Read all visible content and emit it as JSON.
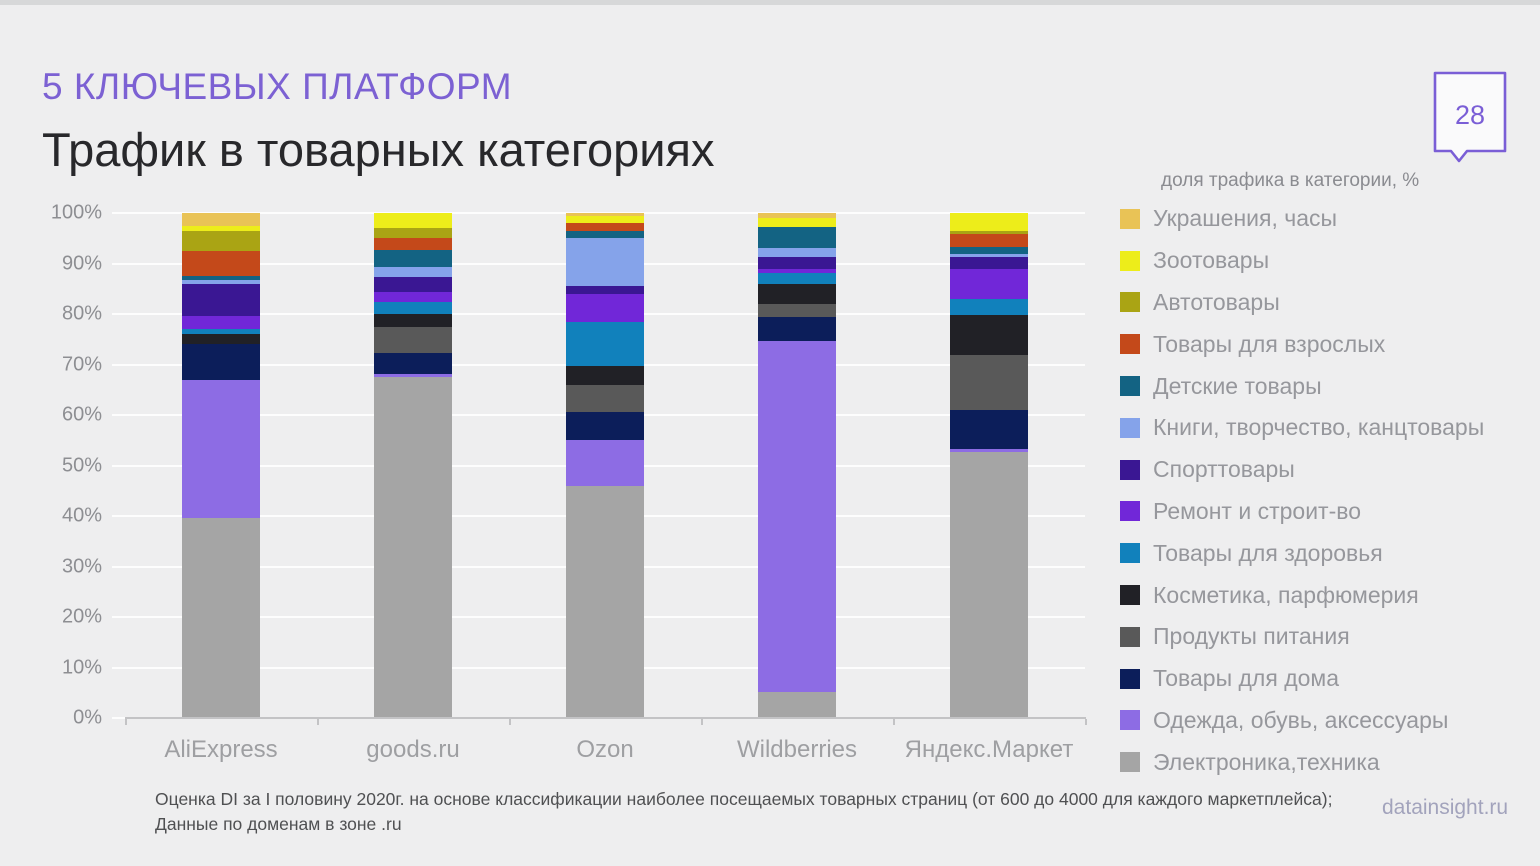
{
  "header": {
    "kicker": "5 КЛЮЧЕВЫХ ПЛАТФОРМ",
    "title": "Трафик в товарных категориях",
    "page_number": "28"
  },
  "legend_title": "доля трафика в категории, %",
  "chart_data": {
    "type": "bar",
    "stacked": true,
    "unit": "%",
    "title": "Трафик в товарных категориях",
    "legend_position": "right",
    "grid": true,
    "ylim": [
      0,
      100
    ],
    "y_ticks": [
      "100%",
      "90%",
      "80%",
      "70%",
      "60%",
      "50%",
      "40%",
      "30%",
      "20%",
      "10%",
      "0%"
    ],
    "categories": [
      "AliExpress",
      "goods.ru",
      "Ozon",
      "Wildberries",
      "Яндекс.Маркет"
    ],
    "series": [
      {
        "name": "Украшения, часы",
        "color": "#e9c356",
        "values": [
          2.5,
          0,
          0.5,
          0.9,
          0
        ]
      },
      {
        "name": "Зоотовары",
        "color": "#eded1a",
        "values": [
          1,
          2.9,
          1.5,
          1.8,
          3.5
        ]
      },
      {
        "name": "Автотовары",
        "color": "#aaa414",
        "values": [
          4,
          2,
          0,
          0,
          0.7
        ]
      },
      {
        "name": "Товары для взрослых",
        "color": "#c4491a",
        "values": [
          5,
          2.5,
          1.5,
          0,
          2.6
        ]
      },
      {
        "name": "Детские товары",
        "color": "#136383",
        "values": [
          0.8,
          3.2,
          1.5,
          4.3,
          1.3
        ]
      },
      {
        "name": "Книги, творчество, канцтовары",
        "color": "#85a3ea",
        "values": [
          0.7,
          2,
          9.5,
          1.7,
          0.7
        ]
      },
      {
        "name": "Спорттовары",
        "color": "#3a1793",
        "values": [
          6.5,
          3,
          1.6,
          2.3,
          2.3
        ]
      },
      {
        "name": "Ремонт и строит-во",
        "color": "#7127d8",
        "values": [
          2.5,
          2,
          5.5,
          0.8,
          5.9
        ]
      },
      {
        "name": "Товары для здоровья",
        "color": "#1181bc",
        "values": [
          1,
          2.4,
          8.7,
          2.2,
          3.3
        ]
      },
      {
        "name": "Косметика, парфюмерия",
        "color": "#212126",
        "values": [
          2,
          2.5,
          3.8,
          4.1,
          7.9
        ]
      },
      {
        "name": "Продукты питания",
        "color": "#595959",
        "values": [
          0,
          5.3,
          5.3,
          2.5,
          10.9
        ]
      },
      {
        "name": "Товары для дома",
        "color": "#0c1e5a",
        "values": [
          7,
          4,
          5.5,
          4.8,
          7.6
        ]
      },
      {
        "name": "Одежда, обувь, аксессуары",
        "color": "#8d6ce4",
        "values": [
          27.5,
          0.7,
          9.1,
          69.5,
          0.7
        ]
      },
      {
        "name": "Электроника,техника",
        "color": "#a5a5a5",
        "values": [
          39.5,
          67.5,
          46,
          5.1,
          52.6
        ]
      }
    ]
  },
  "footer": {
    "note_line1": "Оценка DI за I половину 2020г. на основе классификации наиболее посещаемых товарных страниц (от 600 до 4000 для каждого маркетплейса);",
    "note_line2": "Данные по доменам в зоне .ru",
    "brand": "datainsight.ru"
  }
}
